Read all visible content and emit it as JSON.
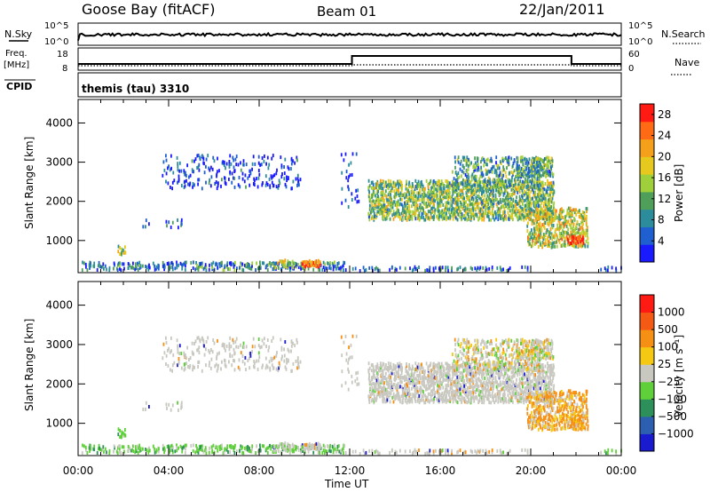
{
  "header": {
    "station": "Goose Bay (fitACF)",
    "beam": "Beam 01",
    "date": "22/Jan/2011"
  },
  "strips": {
    "nsky_label": "N.Sky",
    "nsky_ticks": [
      "10^5",
      "10^0"
    ],
    "nsearch_label": "N.Search",
    "nsearch_ticks": [
      "10^5",
      "10^0"
    ],
    "freq_label": "Freq.",
    "freq_unit": "[MHz]",
    "freq_ticks": [
      "18",
      "8"
    ],
    "nave_label": "Nave",
    "nave_ticks": [
      "60",
      "0"
    ],
    "cpid_label": "CPID",
    "cpid_value": "themis (tau) 3310"
  },
  "chart_data": [
    {
      "type": "heatmap",
      "name": "power",
      "xlabel": "Time UT",
      "ylabel": "Slant Range [km]",
      "ylim": [
        180,
        4600
      ],
      "xlim_hours": [
        0,
        24
      ],
      "y_ticks": [
        1000,
        2000,
        3000,
        4000
      ],
      "x_ticks": [
        "00:00",
        "04:00",
        "08:00",
        "12:00",
        "16:00",
        "20:00",
        "00:00"
      ],
      "colorbar": {
        "label": "Power [dB]",
        "ticks": [
          "4",
          "8",
          "12",
          "16",
          "20",
          "24",
          "28"
        ],
        "range": [
          0,
          30
        ],
        "colors": [
          "#1a1aff",
          "#1f5fcf",
          "#2d8c9c",
          "#4f9f5a",
          "#9fcf3a",
          "#e6c81e",
          "#f5a01a",
          "#ff6a14",
          "#ff1a14"
        ]
      }
    },
    {
      "type": "heatmap",
      "name": "velocity",
      "xlabel": "Time UT",
      "ylabel": "Slant Range [km]",
      "ylim": [
        180,
        4600
      ],
      "xlim_hours": [
        0,
        24
      ],
      "y_ticks": [
        1000,
        2000,
        3000,
        4000
      ],
      "x_ticks": [
        "00:00",
        "04:00",
        "08:00",
        "12:00",
        "16:00",
        "20:00",
        "00:00"
      ],
      "colorbar": {
        "label": "Velocity [m s⁻¹]",
        "ticks": [
          "1000",
          "500",
          "100",
          "25",
          "−25",
          "−100",
          "−500",
          "−1000"
        ],
        "colors": [
          "#1a1acf",
          "#2d5fb0",
          "#2d8f5a",
          "#5fcf3a",
          "#c8c8c0",
          "#f5c814",
          "#f59014",
          "#f55a14",
          "#ff1a14"
        ]
      }
    }
  ]
}
